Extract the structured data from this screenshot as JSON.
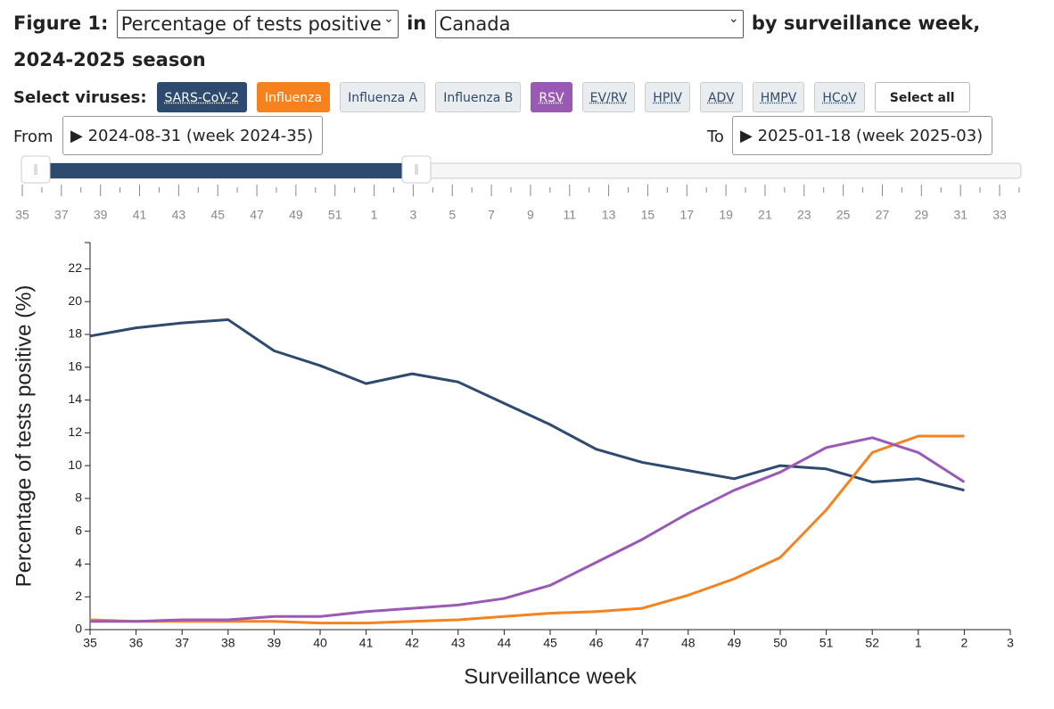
{
  "ui": {
    "figure_label": "Figure 1:",
    "measure": "Percentage of tests positive",
    "in_label": "in",
    "region": "Canada",
    "title_rest": "by surveillance week, 2024-2025 season",
    "select_label": "Select viruses:",
    "other_viruses": [
      "Influenza A",
      "Influenza B",
      "EV/RV",
      "HPIV",
      "ADV",
      "HMPV",
      "HCoV"
    ],
    "select_all": "Select all",
    "from_label": "From",
    "from_value": "2024-08-31 (week 2024-35)",
    "to_label": "To",
    "to_value": "2025-01-18 (week 2025-03)",
    "slider_labels": [
      35,
      37,
      39,
      41,
      43,
      45,
      47,
      49,
      51,
      1,
      3,
      5,
      7,
      9,
      11,
      13,
      15,
      17,
      19,
      21,
      23,
      25,
      27,
      29,
      31,
      33
    ]
  },
  "chart_data": {
    "type": "line",
    "xlabel": "Surveillance week",
    "ylabel": "Percentage of tests positive (%)",
    "categories": [
      "35",
      "36",
      "37",
      "38",
      "39",
      "40",
      "41",
      "42",
      "43",
      "44",
      "45",
      "46",
      "47",
      "48",
      "49",
      "50",
      "51",
      "52",
      "1",
      "2",
      "3"
    ],
    "series": [
      {
        "name": "SARS-CoV-2",
        "color": "#2e4a6e",
        "values": [
          17.9,
          18.4,
          18.7,
          18.9,
          17.0,
          16.1,
          15.0,
          15.6,
          15.1,
          13.8,
          12.5,
          11.0,
          10.2,
          9.7,
          9.2,
          10.0,
          9.8,
          9.0,
          9.2,
          8.5,
          null
        ]
      },
      {
        "name": "Influenza",
        "color": "#f5821f",
        "values": [
          0.6,
          0.5,
          0.5,
          0.5,
          0.5,
          0.4,
          0.4,
          0.5,
          0.6,
          0.8,
          1.0,
          1.1,
          1.3,
          2.1,
          3.1,
          4.4,
          7.3,
          10.8,
          11.8,
          11.8,
          null
        ]
      },
      {
        "name": "RSV",
        "color": "#9b59b6",
        "values": [
          0.5,
          0.5,
          0.6,
          0.6,
          0.8,
          0.8,
          1.1,
          1.3,
          1.5,
          1.9,
          2.7,
          4.1,
          5.5,
          7.1,
          8.5,
          9.6,
          11.1,
          11.7,
          10.8,
          9.0,
          null
        ]
      }
    ],
    "ylim": [
      0,
      23.6
    ],
    "yticks": [
      0,
      2,
      4,
      6,
      8,
      10,
      12,
      14,
      16,
      18,
      20,
      22
    ],
    "grid": false
  }
}
